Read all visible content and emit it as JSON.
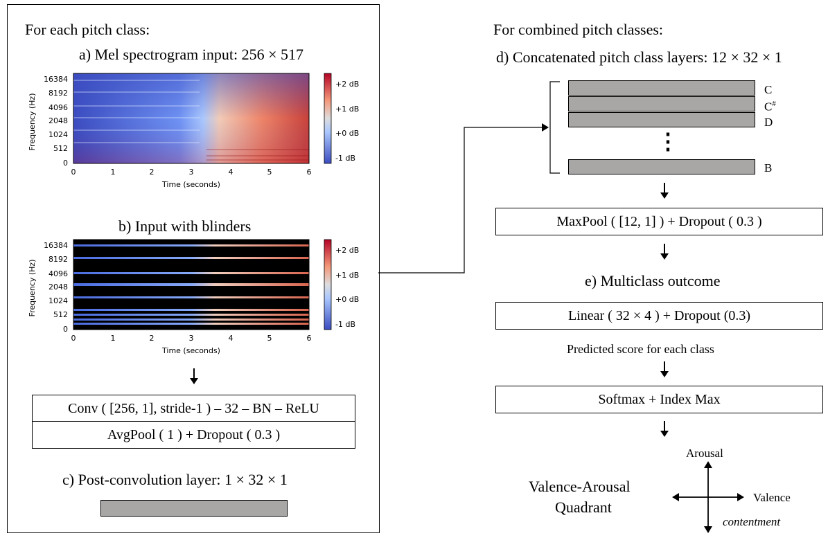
{
  "left": {
    "header": "For each pitch class:",
    "title_a": "a) Mel spectrogram input: 256 × 517",
    "title_b": "b) Input with blinders",
    "conv_box": "Conv ( [256, 1], stride-1 ) – 32 – BN – ReLU",
    "pool_box": "AvgPool ( 1 ) + Dropout ( 0.3 )",
    "title_c": "c) Post-convolution layer: 1 × 32 × 1"
  },
  "spectrogram": {
    "ylabel": "Frequency (Hz)",
    "xlabel": "Time (seconds)",
    "yticks": [
      "16384",
      "8192",
      "4096",
      "2048",
      "1024",
      "512",
      "0"
    ],
    "xticks": [
      "0",
      "1",
      "2",
      "3",
      "4",
      "5",
      "6"
    ],
    "cbar_ticks": [
      "+2 dB",
      "+1 dB",
      "+0 dB",
      "-1 dB"
    ]
  },
  "right": {
    "header": "For combined pitch classes:",
    "title_d": "d) Concatenated pitch class layers: 12 × 32 × 1",
    "pitch_labels": [
      "C",
      "C#",
      "D",
      "B"
    ],
    "ellipsis": "⋮",
    "maxpool_box": "MaxPool ( [12, 1] ) + Dropout ( 0.3 )",
    "title_e": "e) Multiclass outcome",
    "linear_box": "Linear ( 32 × 4 ) + Dropout (0.3)",
    "predicted": "Predicted score for each class",
    "softmax_box": "Softmax + Index Max",
    "quadrant_title_1": "Valence-Arousal",
    "quadrant_title_2": "Quadrant",
    "axis_arousal": "Arousal",
    "axis_valence": "Valence",
    "quadrant_word": "contentment"
  }
}
